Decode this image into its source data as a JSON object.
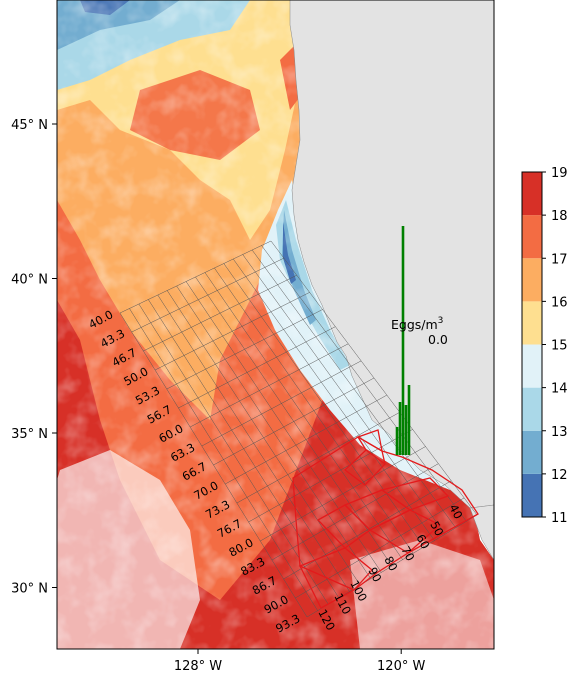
{
  "map": {
    "lat_ticks": [
      {
        "value": 45,
        "label": "45° N"
      },
      {
        "value": 40,
        "label": "40° N"
      },
      {
        "value": 35,
        "label": "35° N"
      },
      {
        "value": 30,
        "label": "30° N"
      }
    ],
    "lon_ticks": [
      {
        "value": -128,
        "label": "128° W"
      },
      {
        "value": -120,
        "label": "120° W"
      }
    ],
    "colors": {
      "land": "#e3e3e3",
      "grid_line": "#555555",
      "region_outline": "#e31a1c",
      "egg_bars": "#008000"
    }
  },
  "survey_grid": {
    "line_labels": [
      "40.0",
      "43.3",
      "46.7",
      "50.0",
      "53.3",
      "56.7",
      "60.0",
      "63.3",
      "66.7",
      "70.0",
      "73.3",
      "76.7",
      "80.0",
      "83.3",
      "86.7",
      "90.0",
      "93.3"
    ],
    "station_labels": [
      "120",
      "110",
      "100",
      "90",
      "80",
      "70",
      "60",
      "50",
      "40"
    ]
  },
  "eggs": {
    "unit_label": "Eggs/m",
    "unit_superscript": "3",
    "value_label": "0.0"
  },
  "colorbar": {
    "tick_labels": [
      "11",
      "12",
      "13",
      "14",
      "15",
      "16",
      "17",
      "18",
      "19"
    ],
    "bins": [
      {
        "from": 11,
        "to": 12,
        "color": "#4573b4"
      },
      {
        "from": 12,
        "to": 13,
        "color": "#73add0"
      },
      {
        "from": 13,
        "to": 14,
        "color": "#aad8e8"
      },
      {
        "from": 14,
        "to": 15,
        "color": "#e1f2f8"
      },
      {
        "from": 15,
        "to": 16,
        "color": "#fedf90"
      },
      {
        "from": 16,
        "to": 17,
        "color": "#fcad61"
      },
      {
        "from": 17,
        "to": 18,
        "color": "#f36c43"
      },
      {
        "from": 18,
        "to": 19,
        "color": "#d73027"
      }
    ]
  }
}
